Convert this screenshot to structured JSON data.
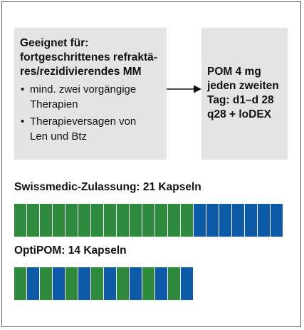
{
  "indication": {
    "title_lines": [
      "Geeignet für:",
      "fortgeschrittenes refraktä-",
      "res/rezidivierendes MM"
    ],
    "bullets": [
      {
        "lines": [
          "mind. zwei vorgängige",
          "Therapien"
        ]
      },
      {
        "lines": [
          "Therapieversagen von",
          "Len und Btz"
        ]
      }
    ]
  },
  "regimen": {
    "lines": [
      "POM 4 mg",
      "jeden zweiten",
      "Tag: d1–d 28",
      "q28 + loDEX"
    ]
  },
  "comparisons": [
    {
      "label": "Swissmedic-Zulassung: 21 Kapseln",
      "capsules": 21,
      "green_count": 14
    },
    {
      "label": "OptiPOM: 14 Kapseln",
      "capsules": 14,
      "pattern": "alternating"
    }
  ],
  "colors": {
    "green": "#2e8b3e",
    "blue": "#0d5aa7",
    "box": "#e4e4e4"
  }
}
